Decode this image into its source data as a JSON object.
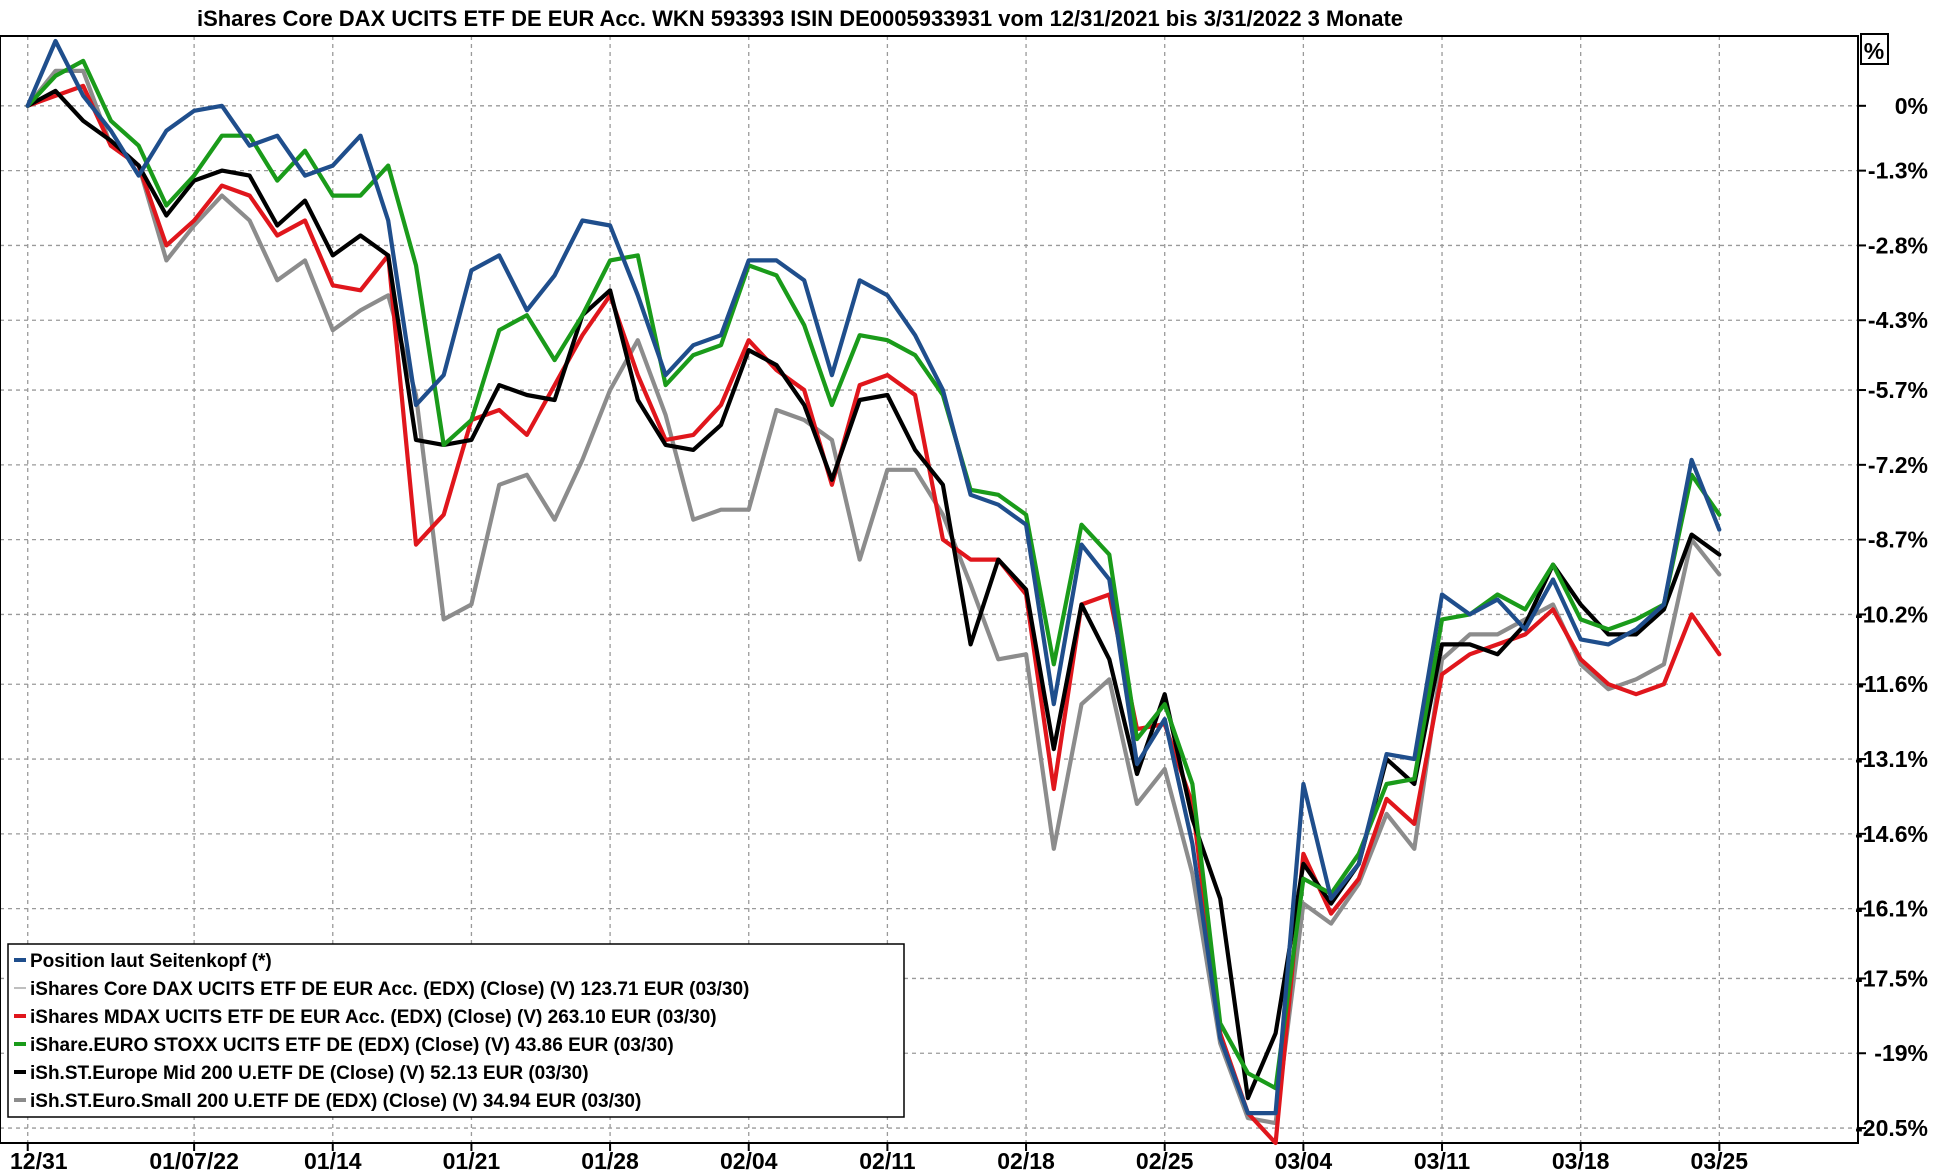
{
  "chart_data": {
    "type": "line",
    "title": "iShares Core DAX UCITS ETF DE EUR Acc. WKN 593393 ISIN DE0005933931 vom 12/31/2021 bis 3/31/2022 3 Monate",
    "unit_label": "%",
    "x_tick_labels": [
      "12/31",
      "01/07/22",
      "01/14",
      "01/21",
      "01/28",
      "02/04",
      "02/11",
      "02/18",
      "02/25",
      "03/04",
      "03/11",
      "03/18",
      "03/25"
    ],
    "x_tick_positions": [
      0,
      6,
      11,
      16,
      21,
      26,
      31,
      36,
      41,
      46,
      51,
      56,
      61
    ],
    "y_tick_labels": [
      "0%",
      "-1.3%",
      "-2.8%",
      "-4.3%",
      "-5.7%",
      "-7.2%",
      "-8.7%",
      "-10.2%",
      "-11.6%",
      "-13.1%",
      "-14.6%",
      "-16.1%",
      "-17.5%",
      "-19%",
      "-20.5%"
    ],
    "y_tick_values": [
      0,
      -1.3,
      -2.8,
      -4.3,
      -5.7,
      -7.2,
      -8.7,
      -10.2,
      -11.6,
      -13.1,
      -14.6,
      -16.1,
      -17.5,
      -19,
      -20.5
    ],
    "ylim": [
      -20.8,
      1.4
    ],
    "xlim": [
      -1,
      66
    ],
    "grid": true,
    "legend_position": "bottom-left",
    "series": [
      {
        "name": "Position laut Seitenkopf (*)",
        "color": "#1f4e8c",
        "values": [
          0,
          1.3,
          0.2,
          -0.5,
          -1.4,
          -0.5,
          -0.1,
          0,
          -0.8,
          -0.6,
          -1.4,
          -1.2,
          -0.6,
          -2.3,
          -6.0,
          -5.4,
          -3.3,
          -3.0,
          -4.1,
          -3.4,
          -2.3,
          -2.4,
          -3.8,
          -5.4,
          -4.8,
          -4.6,
          -3.1,
          -3.1,
          -3.5,
          -5.4,
          -3.5,
          -3.8,
          -4.6,
          -5.7,
          -7.8,
          -8.0,
          -8.4,
          -12.0,
          -8.8,
          -9.5,
          -13.2,
          -12.3,
          -14.8,
          -18.7,
          -20.2,
          -20.2,
          -13.6,
          -15.9,
          -15.2,
          -13.0,
          -13.1,
          -9.8,
          -10.2,
          -9.9,
          -10.5,
          -9.5,
          -10.7,
          -10.8,
          -10.5,
          -10.0,
          -7.1,
          -8.5
        ]
      },
      {
        "name": "iShares Core DAX UCITS ETF DE EUR Acc. (EDX) (Close) (V) 123.71 EUR (03/30)",
        "color": "#bfbfbf",
        "values": [
          0,
          1.3,
          0.2,
          -0.5,
          -1.4,
          -0.5,
          -0.1,
          0,
          -0.8,
          -0.6,
          -1.4,
          -1.2,
          -0.6,
          -2.3,
          -6.0,
          -5.4,
          -3.3,
          -3.0,
          -4.1,
          -3.4,
          -2.3,
          -2.4,
          -3.8,
          -5.4,
          -4.8,
          -4.6,
          -3.1,
          -3.1,
          -3.5,
          -5.4,
          -3.5,
          -3.8,
          -4.6,
          -5.7,
          -7.8,
          -8.0,
          -8.4,
          -12.0,
          -8.8,
          -9.5,
          -13.2,
          -12.3,
          -14.8,
          -18.7,
          -20.2,
          -20.2,
          -13.6,
          -15.9,
          -15.2,
          -13.0,
          -13.1,
          -9.8,
          -10.2,
          -9.9,
          -10.5,
          -9.5,
          -10.7,
          -10.8,
          -10.5,
          -10.0,
          -7.1,
          -8.5
        ]
      },
      {
        "name": "iShares MDAX UCITS ETF DE EUR Acc. (EDX) (Close) (V) 263.10 EUR (03/30)",
        "color": "#e0161c",
        "values": [
          0,
          0.2,
          0.4,
          -0.8,
          -1.2,
          -2.8,
          -2.3,
          -1.6,
          -1.8,
          -2.6,
          -2.3,
          -3.6,
          -3.7,
          -3.0,
          -8.8,
          -8.2,
          -6.3,
          -6.1,
          -6.6,
          -5.6,
          -4.6,
          -3.8,
          -5.4,
          -6.7,
          -6.6,
          -6.0,
          -4.7,
          -5.3,
          -5.7,
          -7.6,
          -5.6,
          -5.4,
          -5.8,
          -8.7,
          -9.1,
          -9.1,
          -9.8,
          -13.7,
          -10.0,
          -9.8,
          -12.5,
          -12.4,
          -14.0,
          -18.6,
          -20.2,
          -20.8,
          -15.0,
          -16.2,
          -15.5,
          -13.9,
          -14.4,
          -11.4,
          -11.0,
          -10.8,
          -10.6,
          -10.1,
          -11.1,
          -11.6,
          -11.8,
          -11.6,
          -10.2,
          -11.0
        ]
      },
      {
        "name": "iShare.EURO STOXX UCITS ETF DE (EDX) (Close) (V) 43.86 EUR (03/30)",
        "color": "#1a9b1a",
        "values": [
          0,
          0.6,
          0.9,
          -0.3,
          -0.8,
          -2.0,
          -1.4,
          -0.6,
          -0.6,
          -1.5,
          -0.9,
          -1.8,
          -1.8,
          -1.2,
          -3.2,
          -6.8,
          -6.3,
          -4.5,
          -4.2,
          -5.1,
          -4.2,
          -3.1,
          -3.0,
          -5.6,
          -5.0,
          -4.8,
          -3.2,
          -3.4,
          -4.4,
          -6.0,
          -4.6,
          -4.7,
          -5.0,
          -5.8,
          -7.7,
          -7.8,
          -8.2,
          -11.2,
          -8.4,
          -9.0,
          -12.7,
          -12.0,
          -13.6,
          -18.4,
          -19.4,
          -19.7,
          -15.5,
          -15.8,
          -15.0,
          -13.6,
          -13.5,
          -10.3,
          -10.2,
          -9.8,
          -10.1,
          -9.2,
          -10.3,
          -10.5,
          -10.3,
          -10.0,
          -7.4,
          -8.2
        ]
      },
      {
        "name": "iSh.ST.Europe Mid 200 U.ETF DE (Close) (V) 52.13 EUR (03/30)",
        "color": "#000000",
        "values": [
          0,
          0.3,
          -0.3,
          -0.7,
          -1.2,
          -2.2,
          -1.5,
          -1.3,
          -1.4,
          -2.4,
          -1.9,
          -3.0,
          -2.6,
          -3.0,
          -6.7,
          -6.8,
          -6.7,
          -5.6,
          -5.8,
          -5.9,
          -4.2,
          -3.7,
          -5.9,
          -6.8,
          -6.9,
          -6.4,
          -4.9,
          -5.2,
          -6.0,
          -7.5,
          -5.9,
          -5.8,
          -6.9,
          -7.6,
          -10.8,
          -9.1,
          -9.7,
          -12.9,
          -10.0,
          -11.1,
          -13.4,
          -11.8,
          -14.3,
          -15.9,
          -19.9,
          -18.6,
          -15.2,
          -16.0,
          -15.2,
          -13.1,
          -13.6,
          -10.8,
          -10.8,
          -11.0,
          -10.4,
          -9.2,
          -10.0,
          -10.6,
          -10.6,
          -10.1,
          -8.6,
          -9.0
        ]
      },
      {
        "name": "iSh.ST.Euro.Small 200 U.ETF DE (EDX) (Close) (V) 34.94 EUR (03/30)",
        "color": "#8c8c8c",
        "values": [
          0,
          0.7,
          0.7,
          -0.8,
          -1.2,
          -3.1,
          -2.4,
          -1.8,
          -2.3,
          -3.5,
          -3.1,
          -4.5,
          -4.1,
          -3.8,
          -5.8,
          -10.3,
          -10.0,
          -7.6,
          -7.4,
          -8.3,
          -7.1,
          -5.7,
          -4.7,
          -6.2,
          -8.3,
          -8.1,
          -8.1,
          -6.1,
          -6.3,
          -6.7,
          -9.1,
          -7.3,
          -7.3,
          -8.2,
          -9.6,
          -11.1,
          -11.0,
          -14.9,
          -12.0,
          -11.5,
          -14.0,
          -13.3,
          -15.4,
          -18.8,
          -20.3,
          -20.4,
          -16.0,
          -16.4,
          -15.6,
          -14.2,
          -14.9,
          -11.1,
          -10.6,
          -10.6,
          -10.3,
          -10.0,
          -11.2,
          -11.7,
          -11.5,
          -11.2,
          -8.7,
          -9.4
        ]
      }
    ]
  }
}
